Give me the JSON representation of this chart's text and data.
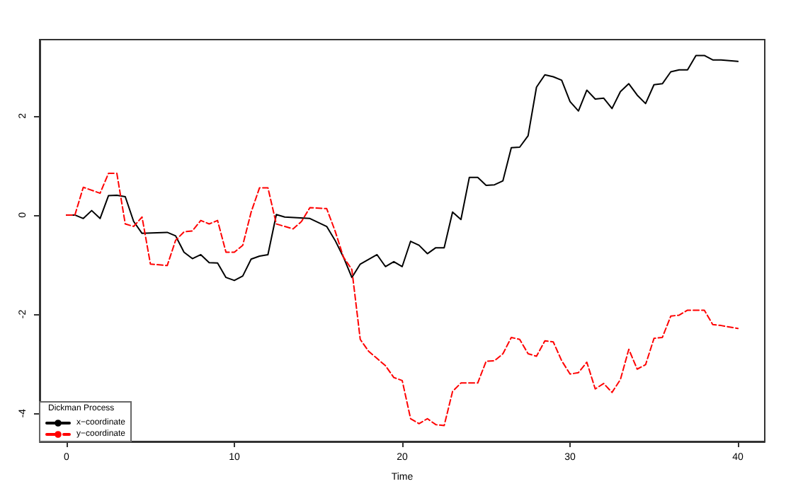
{
  "chart_data": {
    "type": "line",
    "xlabel": "Time",
    "legend_title": "Dickman Process",
    "legend": "bottom left",
    "grid": false,
    "marker": "none",
    "xlim": [
      -1.6,
      41.6
    ],
    "ylim": [
      -4.57,
      3.54
    ],
    "xticks": [
      0,
      10,
      20,
      30,
      40
    ],
    "yticks": [
      -4,
      -2,
      0,
      2
    ],
    "series": [
      {
        "name": "x−coordinate",
        "color": "#000000",
        "line_style": "solid",
        "x": [
          0,
          0.5,
          1,
          1.5,
          2,
          2.5,
          3,
          3.5,
          4,
          4.5,
          6,
          6.5,
          7,
          7.5,
          8,
          8.5,
          9,
          9.5,
          10,
          10.5,
          11,
          11.5,
          12,
          12.5,
          13,
          14.5,
          15.5,
          16,
          16.5,
          17,
          17.5,
          18.5,
          19,
          19.5,
          20,
          20.5,
          21,
          21.5,
          22,
          22.5,
          23,
          23.5,
          24,
          24.5,
          25,
          25.5,
          26,
          26.5,
          27,
          27.5,
          28,
          28.5,
          29,
          29.5,
          30,
          30.5,
          31,
          31.5,
          32,
          32.5,
          33,
          33.5,
          34,
          34.5,
          35,
          35.5,
          36,
          36.5,
          37,
          37.5,
          38,
          38.5,
          39,
          40
        ],
        "values": [
          0,
          0,
          -0.07,
          0.09,
          -0.07,
          0.39,
          0.4,
          0.37,
          -0.13,
          -0.37,
          -0.35,
          -0.42,
          -0.75,
          -0.88,
          -0.8,
          -0.96,
          -0.97,
          -1.26,
          -1.32,
          -1.23,
          -0.89,
          -0.83,
          -0.8,
          0.01,
          -0.04,
          -0.07,
          -0.23,
          -0.51,
          -0.85,
          -1.26,
          -0.99,
          -0.8,
          -1.04,
          -0.94,
          -1.04,
          -0.53,
          -0.61,
          -0.78,
          -0.66,
          -0.66,
          0.06,
          -0.09,
          0.76,
          0.76,
          0.6,
          0.61,
          0.69,
          1.36,
          1.37,
          1.6,
          2.58,
          2.83,
          2.79,
          2.72,
          2.29,
          2.1,
          2.52,
          2.34,
          2.36,
          2.15,
          2.49,
          2.65,
          2.42,
          2.25,
          2.63,
          2.65,
          2.89,
          2.93,
          2.93,
          3.22,
          3.22,
          3.13,
          3.13,
          3.1
        ]
      },
      {
        "name": "y−coordinate",
        "color": "#ff0000",
        "line_style": "dashed",
        "x": [
          0,
          0.5,
          1,
          2,
          2.5,
          3,
          3.5,
          4,
          4.5,
          5,
          6,
          6.5,
          7,
          7.5,
          8,
          8.5,
          9,
          9.5,
          10,
          10.5,
          11,
          11.5,
          12,
          12.5,
          13,
          13.5,
          14,
          14.5,
          15.5,
          16,
          16.5,
          17,
          17.5,
          18,
          19,
          19.5,
          20,
          20.5,
          21,
          21.5,
          22,
          22.5,
          23,
          23.5,
          24.5,
          25,
          25.5,
          26,
          26.5,
          27,
          27.5,
          28,
          28.5,
          29,
          29.5,
          30,
          30.5,
          31,
          31.5,
          32,
          32.5,
          33,
          33.5,
          34,
          34.5,
          35,
          35.5,
          36,
          36.5,
          37,
          38,
          38.5,
          39,
          40
        ],
        "values": [
          0,
          0,
          0.56,
          0.44,
          0.84,
          0.84,
          -0.18,
          -0.23,
          -0.04,
          -0.99,
          -1.02,
          -0.51,
          -0.34,
          -0.32,
          -0.11,
          -0.18,
          -0.11,
          -0.75,
          -0.75,
          -0.61,
          0.06,
          0.55,
          0.55,
          -0.18,
          -0.23,
          -0.28,
          -0.13,
          0.15,
          0.13,
          -0.32,
          -0.85,
          -1.1,
          -2.51,
          -2.75,
          -3.04,
          -3.28,
          -3.34,
          -4.11,
          -4.21,
          -4.11,
          -4.23,
          -4.25,
          -3.56,
          -3.39,
          -3.39,
          -2.95,
          -2.94,
          -2.8,
          -2.47,
          -2.51,
          -2.8,
          -2.85,
          -2.54,
          -2.56,
          -2.94,
          -3.21,
          -3.18,
          -2.97,
          -3.51,
          -3.4,
          -3.58,
          -3.32,
          -2.71,
          -3.11,
          -3.02,
          -2.49,
          -2.47,
          -2.04,
          -2.02,
          -1.92,
          -1.92,
          -2.21,
          -2.23,
          -2.29
        ]
      }
    ]
  }
}
